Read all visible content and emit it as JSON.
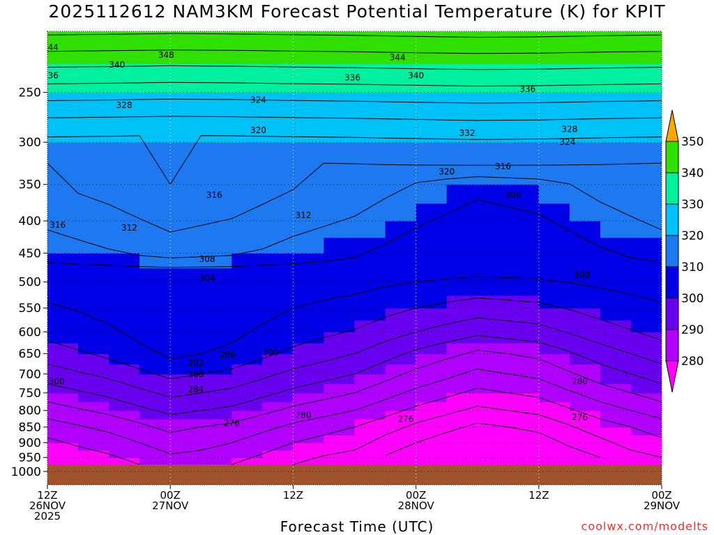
{
  "chart_data": {
    "type": "heatmap",
    "title": "2025112612 NAM3KM Forecast Potential Temperature (K) for KPIT",
    "xlabel": "Forecast Time (UTC)",
    "ylabel": "Pressure (hPa)",
    "credit": "coolwx.com/modelts",
    "x_range_hours": [
      0,
      60
    ],
    "x_ticks": [
      {
        "hour": 0,
        "l1": "12Z",
        "l2": "26NOV",
        "l3": "2025"
      },
      {
        "hour": 12,
        "l1": "00Z",
        "l2": "27NOV",
        "l3": ""
      },
      {
        "hour": 24,
        "l1": "12Z",
        "l2": "",
        "l3": ""
      },
      {
        "hour": 36,
        "l1": "00Z",
        "l2": "28NOV",
        "l3": ""
      },
      {
        "hour": 48,
        "l1": "12Z",
        "l2": "",
        "l3": ""
      },
      {
        "hour": 60,
        "l1": "00Z",
        "l2": "29NOV",
        "l3": ""
      }
    ],
    "y_range_hpa": [
      1050,
      200
    ],
    "y_ticks": [
      250,
      300,
      350,
      400,
      450,
      500,
      550,
      600,
      650,
      700,
      750,
      800,
      850,
      900,
      950,
      1000
    ],
    "surface_pressure_hpa": 975,
    "colorbar": {
      "levels": [
        280,
        290,
        300,
        310,
        320,
        330,
        340,
        350
      ],
      "colors": [
        "#ff00ff",
        "#b000ff",
        "#6a00f0",
        "#0000e6",
        "#1e78f0",
        "#00c0f8",
        "#00f0a0",
        "#30e000",
        "#f0f000",
        "#f8a800"
      ]
    },
    "theta_profiles": {
      "hours": [
        0,
        3,
        6,
        9,
        12,
        15,
        18,
        21,
        24,
        27,
        30,
        33,
        36,
        39,
        42,
        45,
        48,
        51,
        54,
        57,
        60
      ],
      "pressures": [
        975,
        950,
        925,
        900,
        875,
        850,
        825,
        800,
        775,
        750,
        725,
        700,
        675,
        650,
        625,
        600,
        575,
        550,
        525,
        500,
        475,
        450,
        425,
        400,
        375,
        350,
        325,
        300,
        275,
        250,
        225,
        200
      ],
      "base_hours": [
        0,
        6,
        12,
        18,
        24,
        30,
        36,
        42,
        48,
        54,
        60
      ],
      "base_profile": [
        272,
        273,
        275,
        276,
        277.5,
        279,
        281,
        283,
        285,
        287,
        289,
        291,
        293,
        295,
        297,
        299,
        300.5,
        302,
        303.5,
        305,
        306.5,
        308,
        309.5,
        311,
        312.5,
        314,
        316,
        319,
        324,
        330,
        337,
        345
      ],
      "hour_shift_k": [
        3,
        6,
        10,
        8,
        4,
        1,
        -4,
        -8,
        -6,
        -1,
        3
      ]
    },
    "contour_labels": [
      {
        "h": 0.3,
        "p": 212,
        "t": "344"
      },
      {
        "h": 0.3,
        "p": 235,
        "t": "336"
      },
      {
        "h": 6.8,
        "p": 226,
        "t": "340"
      },
      {
        "h": 7.5,
        "p": 262,
        "t": "328"
      },
      {
        "h": 11.6,
        "p": 218,
        "t": "348"
      },
      {
        "h": 20.6,
        "p": 257,
        "t": "324"
      },
      {
        "h": 20.6,
        "p": 287,
        "t": "320"
      },
      {
        "h": 29.8,
        "p": 237,
        "t": "336"
      },
      {
        "h": 34.8,
        "p": 198,
        "t": "352"
      },
      {
        "h": 34.2,
        "p": 220,
        "t": "344"
      },
      {
        "h": 36.0,
        "p": 235,
        "t": "340"
      },
      {
        "h": 41.0,
        "p": 290,
        "t": "332"
      },
      {
        "h": 46.9,
        "p": 247,
        "t": "336"
      },
      {
        "h": 51.0,
        "p": 286,
        "t": "328"
      },
      {
        "h": 50.8,
        "p": 300,
        "t": "324"
      },
      {
        "h": 39.0,
        "p": 334,
        "t": "320"
      },
      {
        "h": 44.5,
        "p": 328,
        "t": "316"
      },
      {
        "h": 45.5,
        "p": 364,
        "t": "308"
      },
      {
        "h": 52.2,
        "p": 488,
        "t": "300"
      },
      {
        "h": 16.3,
        "p": 364,
        "t": "316"
      },
      {
        "h": 25.0,
        "p": 392,
        "t": "312"
      },
      {
        "h": 1.0,
        "p": 406,
        "t": "316"
      },
      {
        "h": 8.0,
        "p": 410,
        "t": "312"
      },
      {
        "h": 15.6,
        "p": 460,
        "t": "308"
      },
      {
        "h": 15.6,
        "p": 493,
        "t": "304"
      },
      {
        "h": 17.6,
        "p": 652,
        "t": "296"
      },
      {
        "h": 21.8,
        "p": 647,
        "t": "300"
      },
      {
        "h": 14.5,
        "p": 672,
        "t": "292"
      },
      {
        "h": 14.5,
        "p": 701,
        "t": "288"
      },
      {
        "h": 14.5,
        "p": 741,
        "t": "284"
      },
      {
        "h": 0.9,
        "p": 719,
        "t": "300"
      },
      {
        "h": 25.0,
        "p": 814,
        "t": "280"
      },
      {
        "h": 18.0,
        "p": 838,
        "t": "276"
      },
      {
        "h": 35.0,
        "p": 825,
        "t": "276"
      },
      {
        "h": 52.0,
        "p": 719,
        "t": "280"
      },
      {
        "h": 52.0,
        "p": 820,
        "t": "276"
      }
    ]
  }
}
